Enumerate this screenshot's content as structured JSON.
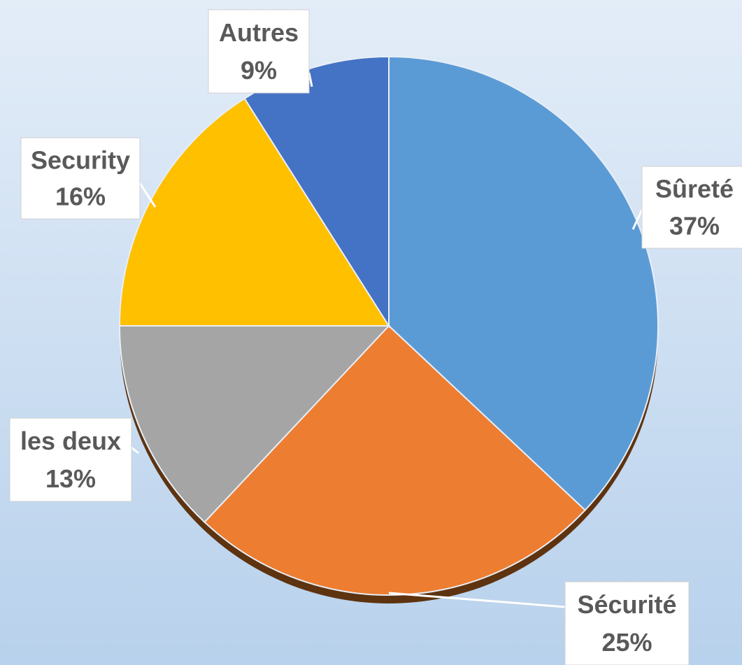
{
  "chart_data": {
    "type": "pie",
    "categories": [
      "Sûreté",
      "Sécurité",
      "les deux",
      "Security",
      "Autres"
    ],
    "values": [
      37,
      25,
      13,
      16,
      9
    ],
    "value_labels": [
      "37%",
      "25%",
      "13%",
      "16%",
      "9%"
    ],
    "colors": [
      "#5b9bd5",
      "#ed7d31",
      "#a5a5a5",
      "#ffc000",
      "#4472c4"
    ]
  }
}
